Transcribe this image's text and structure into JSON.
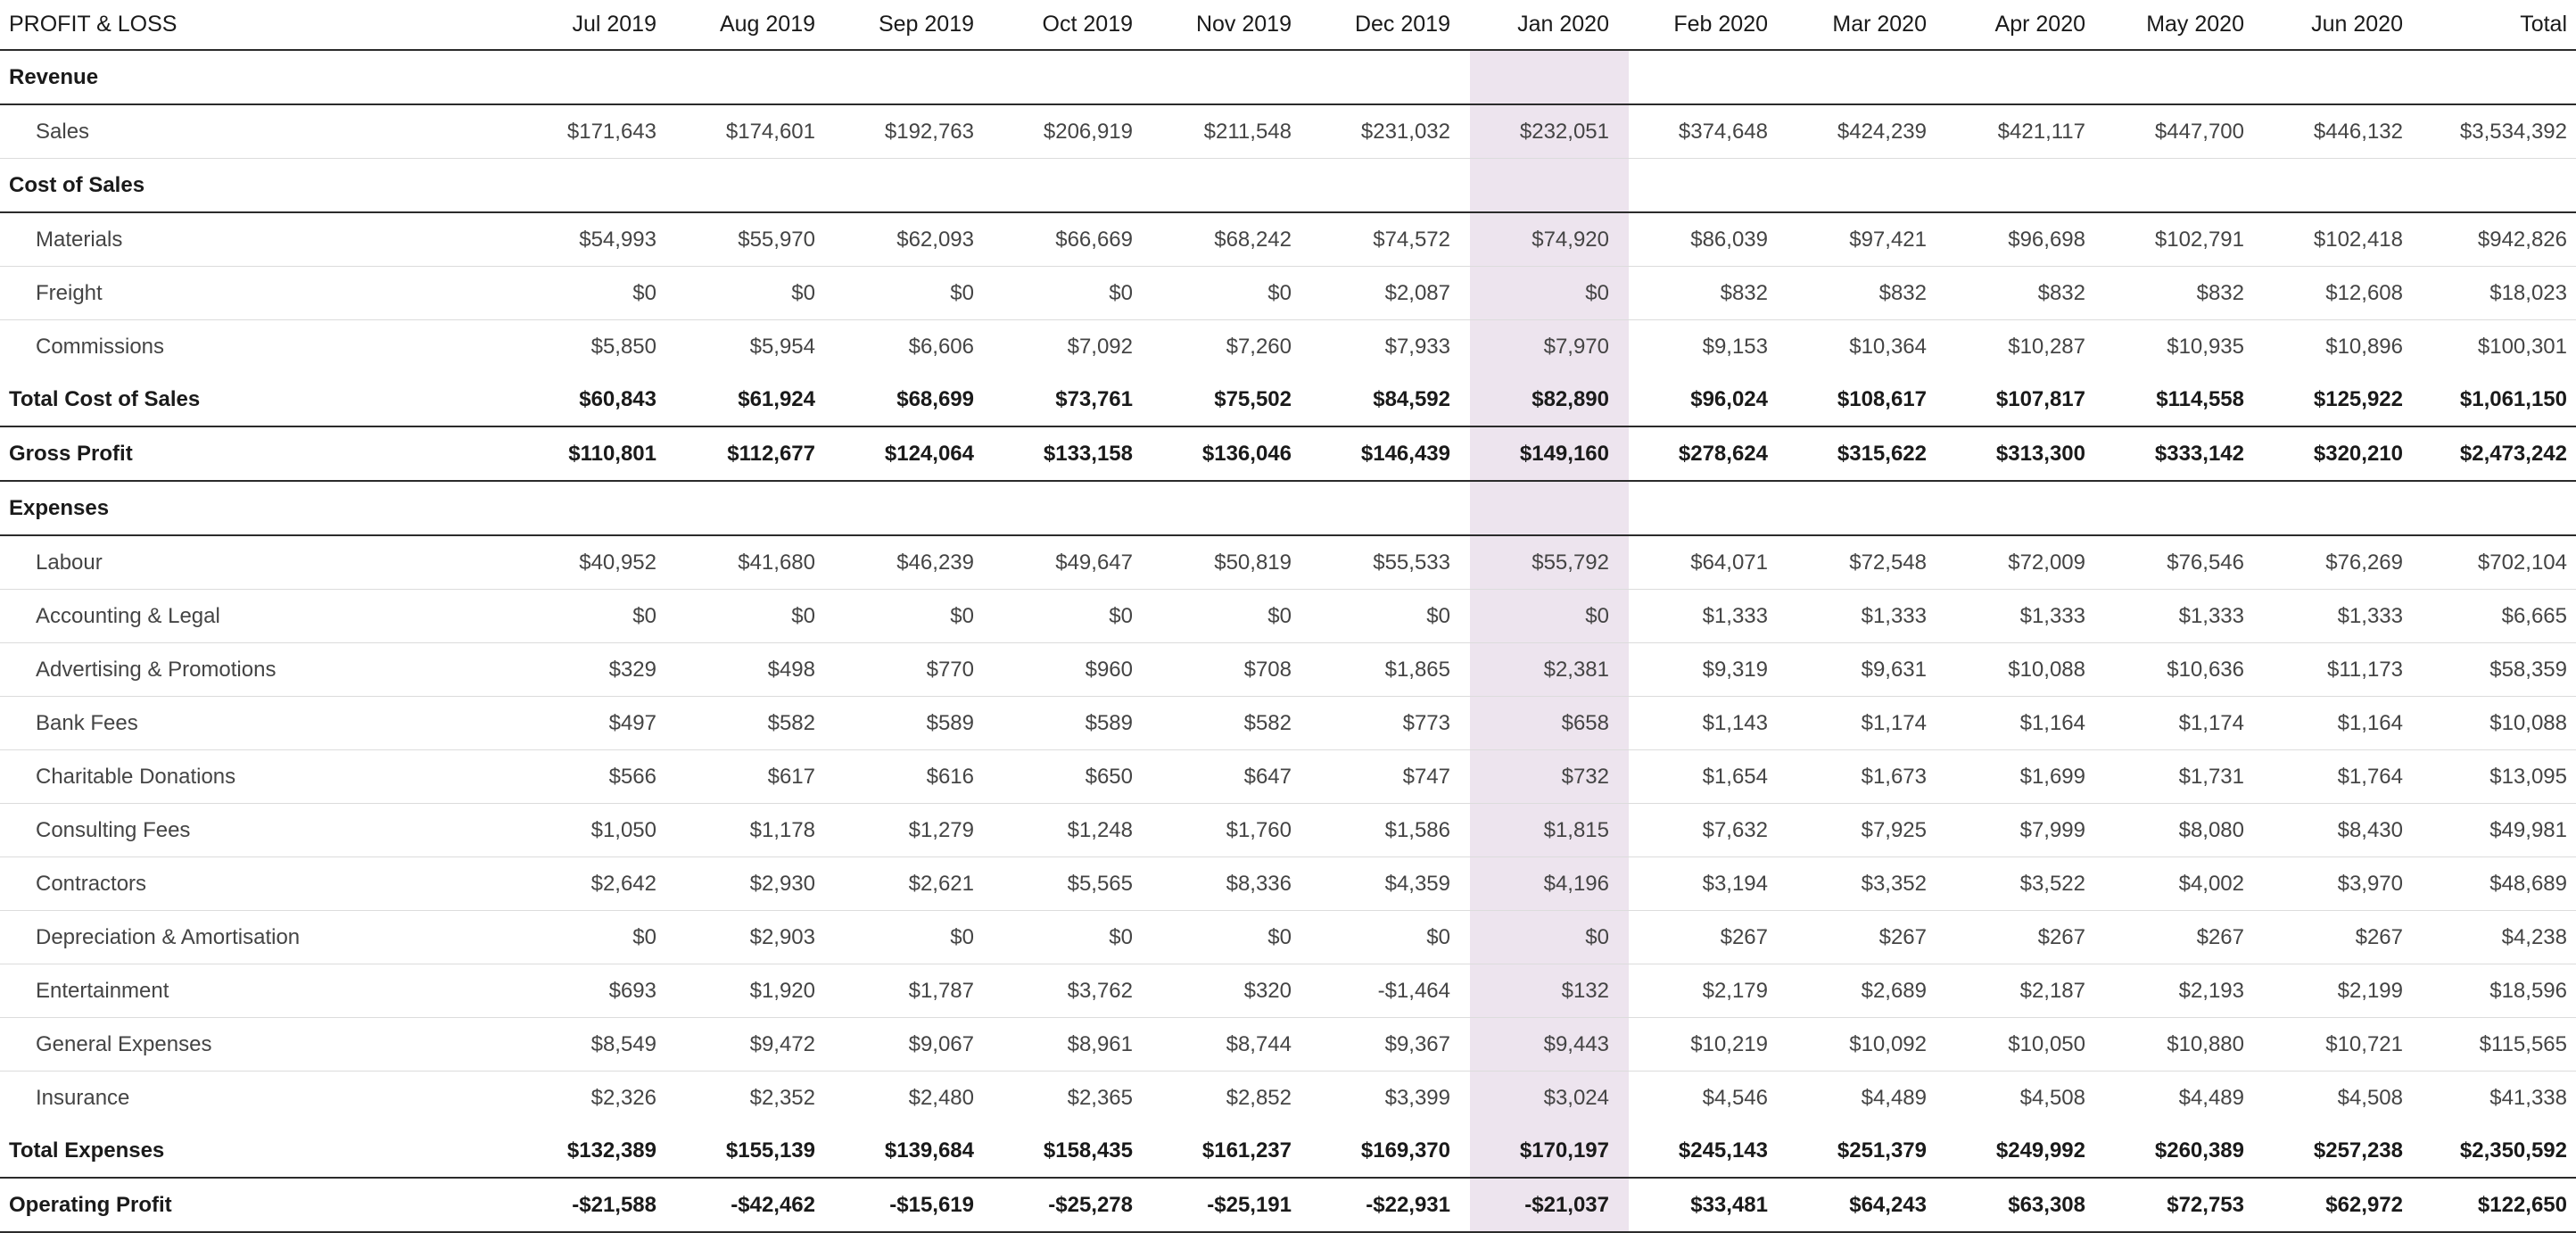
{
  "table": {
    "title": "PROFIT & LOSS",
    "highlight_color": "#ede4ee",
    "months": [
      "Jul 2019",
      "Aug 2019",
      "Sep 2019",
      "Oct 2019",
      "Nov 2019",
      "Dec 2019",
      "Jan 2020",
      "Feb 2020",
      "Mar 2020",
      "Apr 2020",
      "May 2020",
      "Jun 2020"
    ],
    "total_label": "Total",
    "highlighted_month": "Jan 2020",
    "rows": [
      {
        "label": "Revenue",
        "values": [
          "",
          "",
          "",
          "",
          "",
          "",
          "",
          "",
          "",
          "",
          "",
          "",
          ""
        ]
      },
      {
        "label": "Sales",
        "values": [
          "$171,643",
          "$174,601",
          "$192,763",
          "$206,919",
          "$211,548",
          "$231,032",
          "$232,051",
          "$374,648",
          "$424,239",
          "$421,117",
          "$447,700",
          "$446,132",
          "$3,534,392"
        ]
      },
      {
        "label": "Cost of Sales",
        "values": [
          "",
          "",
          "",
          "",
          "",
          "",
          "",
          "",
          "",
          "",
          "",
          "",
          ""
        ]
      },
      {
        "label": "Materials",
        "values": [
          "$54,993",
          "$55,970",
          "$62,093",
          "$66,669",
          "$68,242",
          "$74,572",
          "$74,920",
          "$86,039",
          "$97,421",
          "$96,698",
          "$102,791",
          "$102,418",
          "$942,826"
        ]
      },
      {
        "label": "Freight",
        "values": [
          "$0",
          "$0",
          "$0",
          "$0",
          "$0",
          "$2,087",
          "$0",
          "$832",
          "$832",
          "$832",
          "$832",
          "$12,608",
          "$18,023"
        ]
      },
      {
        "label": "Commissions",
        "values": [
          "$5,850",
          "$5,954",
          "$6,606",
          "$7,092",
          "$7,260",
          "$7,933",
          "$7,970",
          "$9,153",
          "$10,364",
          "$10,287",
          "$10,935",
          "$10,896",
          "$100,301"
        ]
      },
      {
        "label": "Total Cost of Sales",
        "values": [
          "$60,843",
          "$61,924",
          "$68,699",
          "$73,761",
          "$75,502",
          "$84,592",
          "$82,890",
          "$96,024",
          "$108,617",
          "$107,817",
          "$114,558",
          "$125,922",
          "$1,061,150"
        ]
      },
      {
        "label": "Gross Profit",
        "values": [
          "$110,801",
          "$112,677",
          "$124,064",
          "$133,158",
          "$136,046",
          "$146,439",
          "$149,160",
          "$278,624",
          "$315,622",
          "$313,300",
          "$333,142",
          "$320,210",
          "$2,473,242"
        ]
      },
      {
        "label": "Expenses",
        "values": [
          "",
          "",
          "",
          "",
          "",
          "",
          "",
          "",
          "",
          "",
          "",
          "",
          ""
        ]
      },
      {
        "label": "Labour",
        "values": [
          "$40,952",
          "$41,680",
          "$46,239",
          "$49,647",
          "$50,819",
          "$55,533",
          "$55,792",
          "$64,071",
          "$72,548",
          "$72,009",
          "$76,546",
          "$76,269",
          "$702,104"
        ]
      },
      {
        "label": "Accounting & Legal",
        "values": [
          "$0",
          "$0",
          "$0",
          "$0",
          "$0",
          "$0",
          "$0",
          "$1,333",
          "$1,333",
          "$1,333",
          "$1,333",
          "$1,333",
          "$6,665"
        ]
      },
      {
        "label": "Advertising & Promotions",
        "values": [
          "$329",
          "$498",
          "$770",
          "$960",
          "$708",
          "$1,865",
          "$2,381",
          "$9,319",
          "$9,631",
          "$10,088",
          "$10,636",
          "$11,173",
          "$58,359"
        ]
      },
      {
        "label": "Bank Fees",
        "values": [
          "$497",
          "$582",
          "$589",
          "$589",
          "$582",
          "$773",
          "$658",
          "$1,143",
          "$1,174",
          "$1,164",
          "$1,174",
          "$1,164",
          "$10,088"
        ]
      },
      {
        "label": "Charitable Donations",
        "values": [
          "$566",
          "$617",
          "$616",
          "$650",
          "$647",
          "$747",
          "$732",
          "$1,654",
          "$1,673",
          "$1,699",
          "$1,731",
          "$1,764",
          "$13,095"
        ]
      },
      {
        "label": "Consulting Fees",
        "values": [
          "$1,050",
          "$1,178",
          "$1,279",
          "$1,248",
          "$1,760",
          "$1,586",
          "$1,815",
          "$7,632",
          "$7,925",
          "$7,999",
          "$8,080",
          "$8,430",
          "$49,981"
        ]
      },
      {
        "label": "Contractors",
        "values": [
          "$2,642",
          "$2,930",
          "$2,621",
          "$5,565",
          "$8,336",
          "$4,359",
          "$4,196",
          "$3,194",
          "$3,352",
          "$3,522",
          "$4,002",
          "$3,970",
          "$48,689"
        ]
      },
      {
        "label": "Depreciation & Amortisation",
        "values": [
          "$0",
          "$2,903",
          "$0",
          "$0",
          "$0",
          "$0",
          "$0",
          "$267",
          "$267",
          "$267",
          "$267",
          "$267",
          "$4,238"
        ]
      },
      {
        "label": "Entertainment",
        "values": [
          "$693",
          "$1,920",
          "$1,787",
          "$3,762",
          "$320",
          "-$1,464",
          "$132",
          "$2,179",
          "$2,689",
          "$2,187",
          "$2,193",
          "$2,199",
          "$18,596"
        ]
      },
      {
        "label": "General Expenses",
        "values": [
          "$8,549",
          "$9,472",
          "$9,067",
          "$8,961",
          "$8,744",
          "$9,367",
          "$9,443",
          "$10,219",
          "$10,092",
          "$10,050",
          "$10,880",
          "$10,721",
          "$115,565"
        ]
      },
      {
        "label": "Insurance",
        "values": [
          "$2,326",
          "$2,352",
          "$2,480",
          "$2,365",
          "$2,852",
          "$3,399",
          "$3,024",
          "$4,546",
          "$4,489",
          "$4,508",
          "$4,489",
          "$4,508",
          "$41,338"
        ]
      },
      {
        "label": "Total Expenses",
        "values": [
          "$132,389",
          "$155,139",
          "$139,684",
          "$158,435",
          "$161,237",
          "$169,370",
          "$170,197",
          "$245,143",
          "$251,379",
          "$249,992",
          "$260,389",
          "$257,238",
          "$2,350,592"
        ]
      },
      {
        "label": "Operating Profit",
        "values": [
          "-$21,588",
          "-$42,462",
          "-$15,619",
          "-$25,278",
          "-$25,191",
          "-$22,931",
          "-$21,037",
          "$33,481",
          "$64,243",
          "$63,308",
          "$72,753",
          "$62,972",
          "$122,650"
        ]
      }
    ]
  }
}
